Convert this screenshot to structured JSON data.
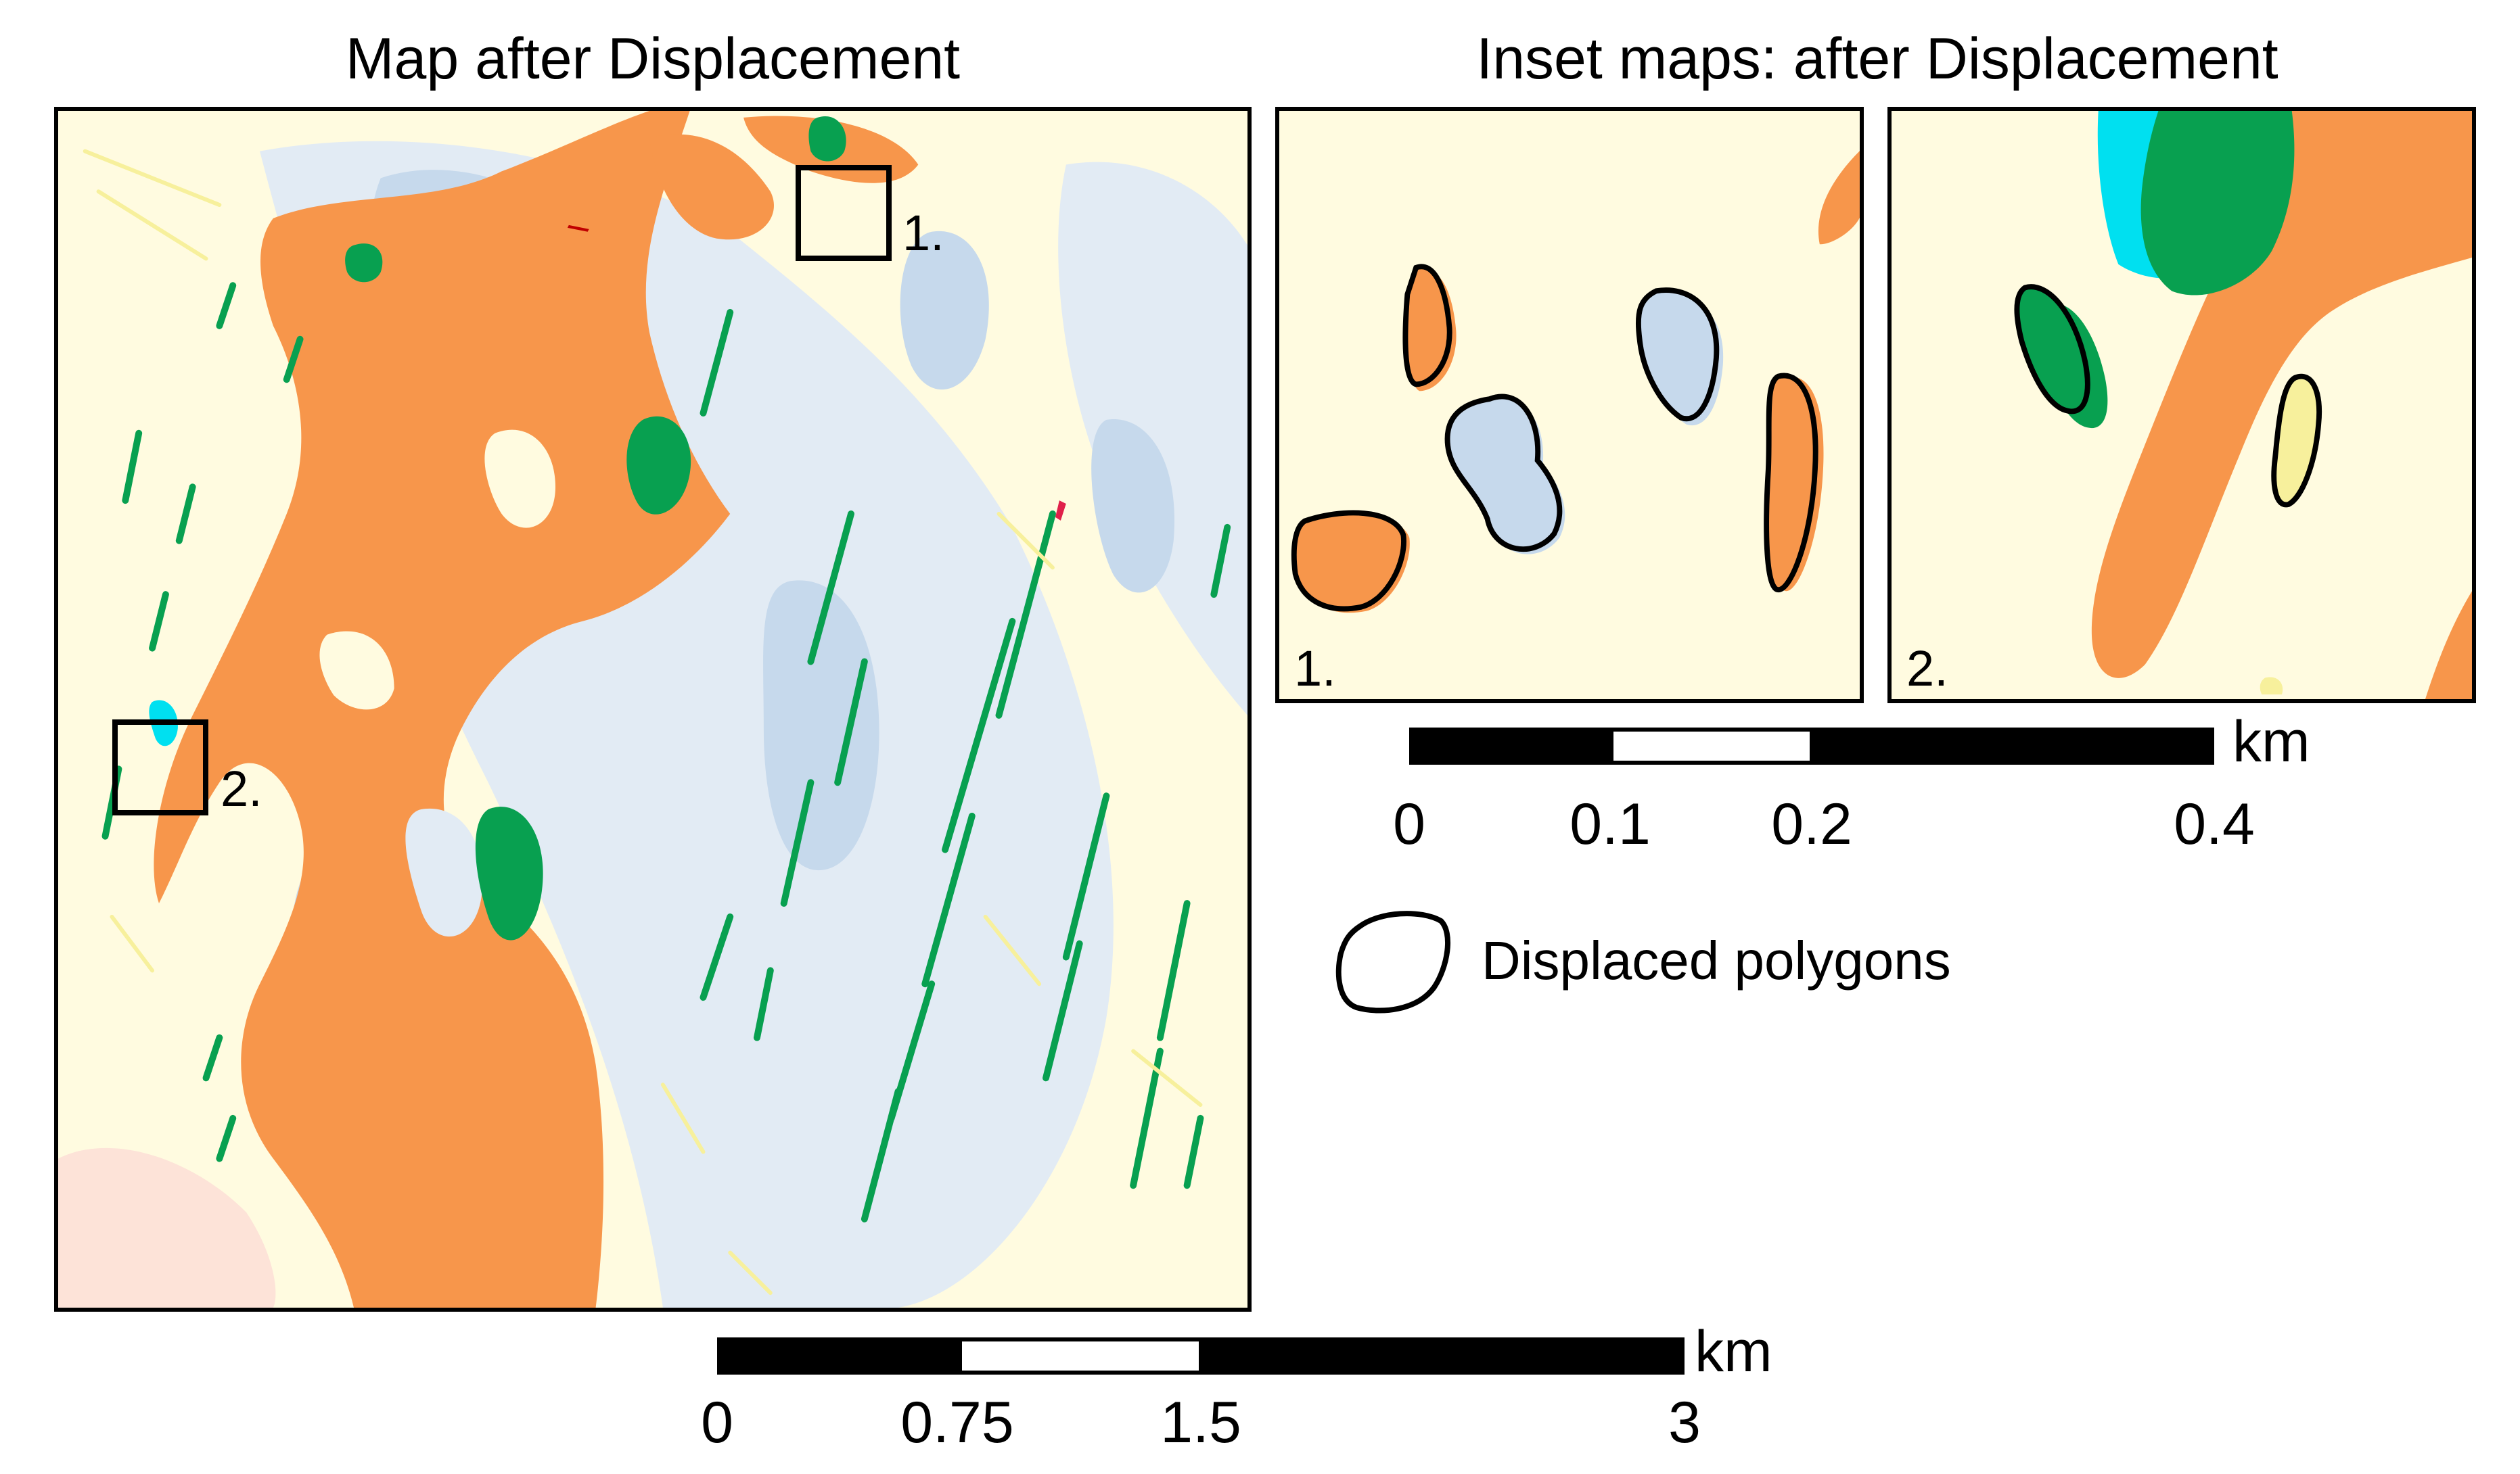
{
  "main_map": {
    "title": "Map after Displacement",
    "markers": [
      {
        "label": "1."
      },
      {
        "label": "2."
      }
    ],
    "scale": {
      "ticks": [
        "0",
        "0.75",
        "1.5",
        "3"
      ],
      "unit": "km"
    }
  },
  "inset_maps": {
    "title": "Inset maps: after Displacement",
    "insets": [
      {
        "label": "1."
      },
      {
        "label": "2."
      }
    ],
    "scale": {
      "ticks": [
        "0",
        "0.1",
        "0.2",
        "0.4"
      ],
      "unit": "km"
    }
  },
  "legend": {
    "displaced_label": "Displaced polygons"
  },
  "colors": {
    "background": "#fffbe0",
    "orange": "#f7964b",
    "light_blue": "#c6d9ec",
    "pale_blue": "#e2ebf4",
    "green": "#08a050",
    "cyan": "#00e0f0",
    "yellow": "#f7f09c",
    "pink": "#fde3d8",
    "outline": "#000000"
  }
}
